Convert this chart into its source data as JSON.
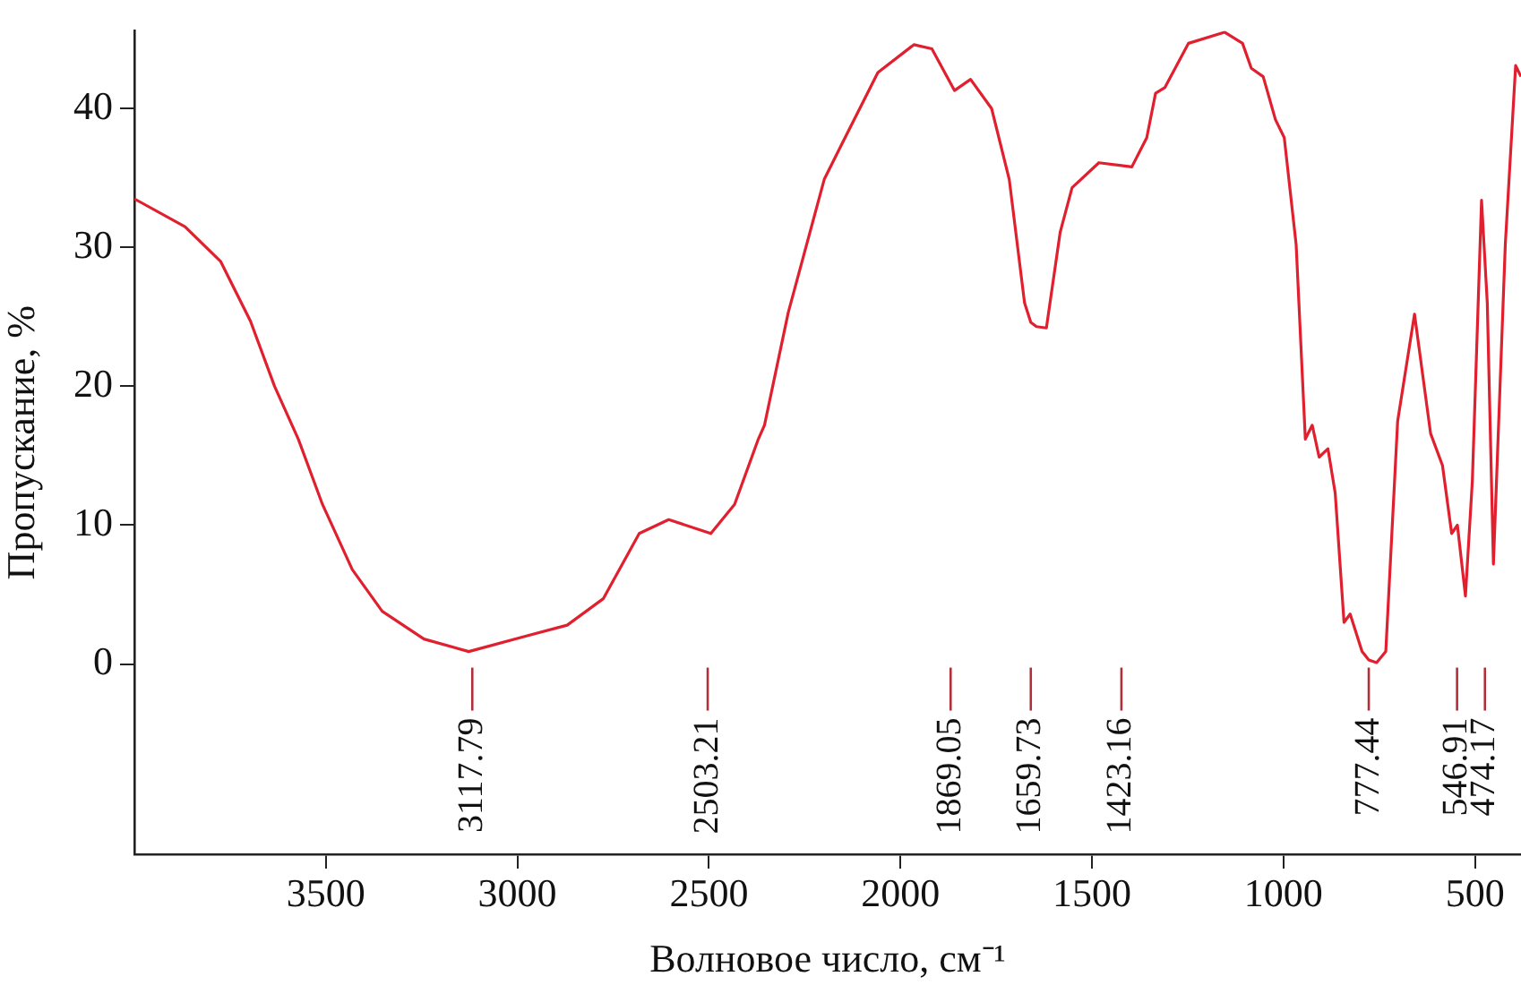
{
  "chart_data": {
    "type": "line",
    "xlabel": "Волновое число, см⁻¹",
    "ylabel": "Пропускание, %",
    "xlim": [
      4000,
      380
    ],
    "ylim": [
      -13.7,
      45.6
    ],
    "xticks": [
      3500,
      3000,
      2500,
      2000,
      1500,
      1000,
      500
    ],
    "yticks": [
      0,
      10,
      20,
      30,
      40
    ],
    "grid": false,
    "legend": false,
    "marker": "none",
    "line_style": "solid",
    "series": [
      {
        "color": "#e0202e",
        "x": [
          4000,
          3868,
          3775,
          3697,
          3634,
          3572,
          3509,
          3431,
          3353,
          3244,
          3127,
          2979,
          2870,
          2776,
          2682,
          2605,
          2495,
          2433,
          2371,
          2355,
          2293,
          2199,
          2152,
          2059,
          1965,
          1918,
          1859,
          1817,
          1762,
          1716,
          1676,
          1659.73,
          1645,
          1619,
          1583,
          1552,
          1482,
          1423.16,
          1396,
          1357,
          1334,
          1310,
          1248,
          1154,
          1107,
          1084,
          1053,
          1021,
          998,
          967,
          943,
          925,
          907,
          884,
          865,
          842,
          826,
          795,
          777.44,
          757,
          733,
          702,
          658,
          616,
          585,
          561,
          546,
          525,
          507,
          483,
          468,
          452,
          421,
          394,
          380
        ],
        "values": [
          33.5,
          31.5,
          29.0,
          24.7,
          20.0,
          16.2,
          11.5,
          6.8,
          3.8,
          1.8,
          0.9,
          2.0,
          2.8,
          4.7,
          9.4,
          10.4,
          9.4,
          11.5,
          16.2,
          17.2,
          25.3,
          34.9,
          37.5,
          42.6,
          44.6,
          44.3,
          41.3,
          42.1,
          40.0,
          34.9,
          26.0,
          24.6,
          24.3,
          24.2,
          31.1,
          34.3,
          36.1,
          35.9,
          35.8,
          37.9,
          41.1,
          41.5,
          44.7,
          45.5,
          44.7,
          42.9,
          42.3,
          39.2,
          37.9,
          30.2,
          16.2,
          17.2,
          14.9,
          15.5,
          12.3,
          3.0,
          3.6,
          0.9,
          0.3,
          0.1,
          0.9,
          17.5,
          25.2,
          16.6,
          14.3,
          9.4,
          10.0,
          4.9,
          13.2,
          33.4,
          26.0,
          7.2,
          30.2,
          43.1,
          42.3
        ]
      }
    ],
    "annotations": [
      {
        "text": "3117.79",
        "x": 3117.79
      },
      {
        "text": "2503.21",
        "x": 2503.21
      },
      {
        "text": "1869.05",
        "x": 1869.05
      },
      {
        "text": "1659.73",
        "x": 1659.73
      },
      {
        "text": "1423.16",
        "x": 1423.16
      },
      {
        "text": "777.44",
        "x": 777.44
      },
      {
        "text": "546.91",
        "x": 546.91
      },
      {
        "text": "474.17",
        "x": 474.17
      }
    ]
  }
}
